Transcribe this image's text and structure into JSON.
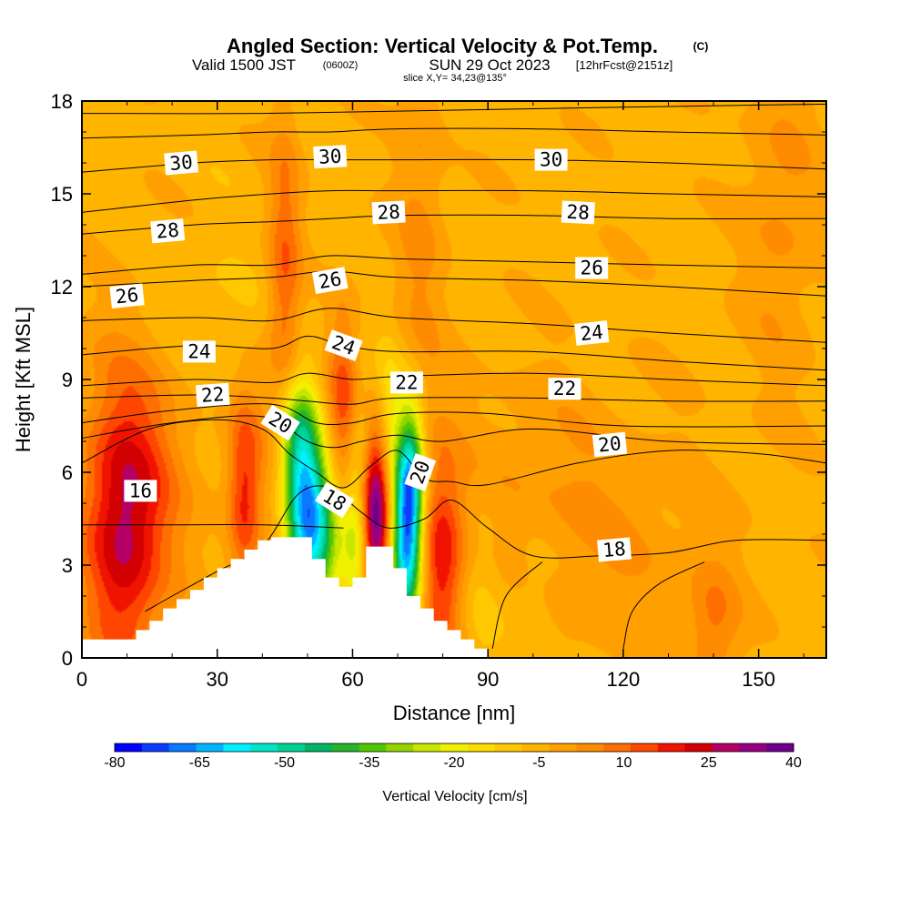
{
  "title": {
    "main": "Angled Section: Vertical Velocity & Pot.Temp.",
    "main_units": "(C)",
    "valid_prefix": "Valid 1500 JST",
    "valid_zulu": "(0600Z)",
    "valid_date": "SUN 29 Oct 2023",
    "valid_forecast": "[12hrFcst@2151z]",
    "slice": "slice X,Y= 34,23@135°"
  },
  "chart_data": {
    "type": "heatmap",
    "xlabel": "Distance [nm]",
    "ylabel": "Height [Kft MSL]",
    "xlim": [
      0,
      165
    ],
    "ylim": [
      0,
      18
    ],
    "x_ticks": [
      0,
      30,
      60,
      90,
      120,
      150
    ],
    "x_tick_labels": [
      "0",
      "30",
      "60",
      "90",
      "120",
      "150"
    ],
    "y_ticks": [
      0,
      3,
      6,
      9,
      12,
      15,
      18
    ],
    "y_tick_labels": [
      "0",
      "3",
      "6",
      "9",
      "12",
      "15",
      "18"
    ],
    "grid": false,
    "colorbar": {
      "label": "Vertical Velocity [cm/s]",
      "tick_labels": [
        "-80",
        "-65",
        "-50",
        "-35",
        "-20",
        "-5",
        "10",
        "25",
        "40"
      ],
      "levels": [
        -80,
        -75,
        -70,
        -65,
        -60,
        -55,
        -50,
        -45,
        -40,
        -35,
        -30,
        -25,
        -20,
        -15,
        -10,
        -5,
        0,
        5,
        10,
        15,
        20,
        25,
        30,
        35,
        40
      ],
      "colors": [
        "#0000ff",
        "#0a3cff",
        "#0a78ff",
        "#00b4ff",
        "#00f0ff",
        "#00e6c8",
        "#00d296",
        "#00b464",
        "#28b428",
        "#50c800",
        "#96d200",
        "#c8e600",
        "#f0f000",
        "#ffdc00",
        "#ffc800",
        "#ffb400",
        "#ffa000",
        "#ff8c00",
        "#ff6e00",
        "#ff4600",
        "#f01400",
        "#d20000",
        "#b40064",
        "#960082",
        "#6e008c"
      ]
    },
    "background_velocity_cms": -2,
    "vertical_velocity_cells": [
      {
        "x": 9,
        "z": 3.8,
        "sx": 6,
        "sz": 3.2,
        "w": 26
      },
      {
        "x": 13,
        "z": 6.0,
        "sx": 9,
        "sz": 3.0,
        "w": 12
      },
      {
        "x": 36,
        "z": 5.2,
        "sx": 2.6,
        "sz": 2.2,
        "w": 22
      },
      {
        "x": 45,
        "z": 12.5,
        "sx": 2.6,
        "sz": 3.5,
        "w": 16
      },
      {
        "x": 44,
        "z": 7.5,
        "sx": 6,
        "sz": 2.0,
        "w": 6
      },
      {
        "x": 58,
        "z": 8.0,
        "sx": 2.6,
        "sz": 2.2,
        "w": 20
      },
      {
        "x": 65,
        "z": 4.5,
        "sx": 2.2,
        "sz": 2.0,
        "w": 48
      },
      {
        "x": 80,
        "z": 3.2,
        "sx": 3.6,
        "sz": 2.4,
        "w": 26
      },
      {
        "x": 75,
        "z": 14,
        "sx": 4,
        "sz": 5,
        "w": 8
      },
      {
        "x": 155,
        "z": 14.5,
        "sx": 6,
        "sz": 4,
        "w": 8
      },
      {
        "x": 120,
        "z": 3.5,
        "sx": 15,
        "sz": 3,
        "w": 6
      },
      {
        "x": 140,
        "z": 1.0,
        "sx": 4,
        "sz": 1.5,
        "w": 12
      },
      {
        "x": 100,
        "z": 6.0,
        "sx": 12,
        "sz": 2.5,
        "w": 5
      },
      {
        "x": 30,
        "z": 10.5,
        "sx": 8,
        "sz": 2.0,
        "w": -4
      },
      {
        "x": 100,
        "z": 2.0,
        "sx": 4,
        "sz": 1.5,
        "w": -5
      },
      {
        "x": 49,
        "z": 5.0,
        "sx": 3.0,
        "sz": 2.4,
        "w": -52
      },
      {
        "x": 53,
        "z": 4.0,
        "sx": 3.0,
        "sz": 1.8,
        "w": -32
      },
      {
        "x": 61,
        "z": 4.0,
        "sx": 2.4,
        "sz": 2.0,
        "w": -22
      },
      {
        "x": 72,
        "z": 3.8,
        "sx": 2.4,
        "sz": 2.2,
        "w": -62
      },
      {
        "x": 73,
        "z": 6.0,
        "sx": 2.0,
        "sz": 1.6,
        "w": -30
      },
      {
        "x": 47,
        "z": 7.2,
        "sx": 3.0,
        "sz": 1.2,
        "w": -18
      },
      {
        "x": 62,
        "z": 7.5,
        "sx": 2.0,
        "sz": 1.5,
        "w": -8
      },
      {
        "x": 68,
        "z": 8.0,
        "sx": 2.0,
        "sz": 1.5,
        "w": -12
      },
      {
        "x": 88,
        "z": 2.0,
        "sx": 4,
        "sz": 2,
        "w": -5
      }
    ],
    "terrain_kft": [
      [
        0,
        0.6
      ],
      [
        9,
        0.6
      ],
      [
        9,
        0.6
      ],
      [
        9,
        0.6
      ],
      [
        9,
        0.6
      ],
      [
        12,
        0.6
      ],
      [
        12,
        0.9
      ],
      [
        15,
        0.9
      ],
      [
        15,
        1.2
      ],
      [
        18,
        1.2
      ],
      [
        18,
        1.6
      ],
      [
        21,
        1.6
      ],
      [
        21,
        1.9
      ],
      [
        24,
        1.9
      ],
      [
        24,
        2.2
      ],
      [
        27,
        2.2
      ],
      [
        27,
        2.6
      ],
      [
        30,
        2.6
      ],
      [
        30,
        2.9
      ],
      [
        33,
        2.9
      ],
      [
        33,
        3.2
      ],
      [
        36,
        3.2
      ],
      [
        36,
        3.5
      ],
      [
        39,
        3.5
      ],
      [
        39,
        3.8
      ],
      [
        42,
        3.8
      ],
      [
        42,
        3.9
      ],
      [
        51,
        3.9
      ],
      [
        51,
        3.2
      ],
      [
        54,
        3.2
      ],
      [
        54,
        2.6
      ],
      [
        57,
        2.6
      ],
      [
        57,
        2.3
      ],
      [
        60,
        2.3
      ],
      [
        60,
        2.6
      ],
      [
        63,
        2.6
      ],
      [
        63,
        3.6
      ],
      [
        69,
        3.6
      ],
      [
        69,
        2.9
      ],
      [
        72,
        2.9
      ],
      [
        72,
        2.0
      ],
      [
        75,
        2.0
      ],
      [
        75,
        1.6
      ],
      [
        78,
        1.6
      ],
      [
        78,
        1.2
      ],
      [
        81,
        1.2
      ],
      [
        81,
        0.9
      ],
      [
        84,
        0.9
      ],
      [
        84,
        0.6
      ],
      [
        87,
        0.6
      ],
      [
        87,
        0.3
      ],
      [
        90,
        0.3
      ]
    ],
    "potential_temperature_contours": [
      {
        "level": "16",
        "pts": [
          [
            0,
            4.3
          ],
          [
            20,
            4.3
          ],
          [
            40,
            4.3
          ],
          [
            58,
            4.2
          ]
        ]
      },
      {
        "level": "18",
        "pts": [
          [
            14,
            1.5
          ],
          [
            20,
            2.0
          ],
          [
            30,
            2.8
          ],
          [
            40,
            3.6
          ],
          [
            48,
            5.3
          ],
          [
            55,
            5.5
          ],
          [
            62,
            4.7
          ],
          [
            68,
            4.2
          ],
          [
            76,
            4.5
          ],
          [
            82,
            5.1
          ],
          [
            90,
            4.2
          ],
          [
            100,
            3.3
          ],
          [
            115,
            3.3
          ],
          [
            130,
            3.4
          ],
          [
            145,
            3.8
          ],
          [
            165,
            3.8
          ]
        ]
      },
      {
        "level": "18",
        "pts": [
          [
            91,
            0.3
          ],
          [
            94,
            2.0
          ],
          [
            102,
            3.1
          ]
        ]
      },
      {
        "level": "18",
        "pts": [
          [
            120,
            0.3
          ],
          [
            122,
            1.5
          ],
          [
            128,
            2.4
          ],
          [
            138,
            3.1
          ]
        ]
      },
      {
        "level": "20",
        "pts": [
          [
            0,
            6.3
          ],
          [
            15,
            7.4
          ],
          [
            30,
            7.7
          ],
          [
            40,
            7.4
          ],
          [
            46,
            6.6
          ],
          [
            52,
            6.0
          ],
          [
            58,
            5.5
          ],
          [
            64,
            6.2
          ],
          [
            70,
            6.7
          ],
          [
            76,
            5.8
          ],
          [
            82,
            5.7
          ],
          [
            90,
            5.6
          ],
          [
            110,
            6.3
          ],
          [
            130,
            6.7
          ],
          [
            150,
            6.6
          ],
          [
            165,
            6.3
          ]
        ]
      },
      {
        "level": "20",
        "pts": [
          [
            0,
            7.1
          ],
          [
            20,
            7.6
          ],
          [
            40,
            7.8
          ],
          [
            50,
            7.0
          ],
          [
            56,
            6.8
          ],
          [
            62,
            7.0
          ],
          [
            70,
            7.2
          ],
          [
            80,
            7.0
          ],
          [
            100,
            7.4
          ],
          [
            130,
            7.0
          ],
          [
            165,
            6.9
          ]
        ]
      },
      {
        "level": "20",
        "pts": [
          [
            0,
            7.6
          ],
          [
            20,
            8.0
          ],
          [
            42,
            8.2
          ],
          [
            52,
            7.6
          ],
          [
            60,
            7.6
          ],
          [
            70,
            7.9
          ],
          [
            90,
            7.9
          ],
          [
            120,
            7.5
          ],
          [
            165,
            7.5
          ]
        ]
      },
      {
        "level": "22",
        "pts": [
          [
            0,
            8.4
          ],
          [
            25,
            8.5
          ],
          [
            42,
            8.4
          ],
          [
            50,
            8.3
          ],
          [
            60,
            8.2
          ],
          [
            70,
            8.4
          ],
          [
            100,
            8.4
          ],
          [
            130,
            8.3
          ],
          [
            165,
            8.3
          ]
        ]
      },
      {
        "level": "22",
        "pts": [
          [
            0,
            8.8
          ],
          [
            25,
            9.0
          ],
          [
            42,
            8.9
          ],
          [
            50,
            9.2
          ],
          [
            60,
            9.0
          ],
          [
            70,
            9.1
          ],
          [
            100,
            9.2
          ],
          [
            130,
            9.0
          ],
          [
            165,
            8.8
          ]
        ]
      },
      {
        "level": "24",
        "pts": [
          [
            0,
            9.8
          ],
          [
            25,
            10.1
          ],
          [
            42,
            10.0
          ],
          [
            50,
            10.4
          ],
          [
            58,
            10.1
          ],
          [
            70,
            9.9
          ],
          [
            100,
            9.9
          ],
          [
            130,
            9.6
          ],
          [
            165,
            9.3
          ]
        ]
      },
      {
        "level": "24",
        "pts": [
          [
            0,
            10.9
          ],
          [
            25,
            11.0
          ],
          [
            42,
            10.9
          ],
          [
            55,
            11.3
          ],
          [
            70,
            11.0
          ],
          [
            100,
            10.8
          ],
          [
            130,
            10.5
          ],
          [
            165,
            10.2
          ]
        ]
      },
      {
        "level": "26",
        "pts": [
          [
            0,
            12.0
          ],
          [
            25,
            12.2
          ],
          [
            42,
            12.3
          ],
          [
            55,
            12.5
          ],
          [
            70,
            12.3
          ],
          [
            100,
            12.2
          ],
          [
            130,
            12.0
          ],
          [
            165,
            11.7
          ]
        ]
      },
      {
        "level": "26",
        "pts": [
          [
            0,
            12.4
          ],
          [
            25,
            12.7
          ],
          [
            42,
            12.7
          ],
          [
            55,
            13.0
          ],
          [
            70,
            12.9
          ],
          [
            100,
            12.8
          ],
          [
            130,
            12.7
          ],
          [
            165,
            12.6
          ]
        ]
      },
      {
        "level": "28",
        "pts": [
          [
            0,
            13.7
          ],
          [
            25,
            14.0
          ],
          [
            42,
            14.1
          ],
          [
            55,
            14.2
          ],
          [
            70,
            14.3
          ],
          [
            100,
            14.3
          ],
          [
            130,
            14.2
          ],
          [
            165,
            14.2
          ]
        ]
      },
      {
        "level": "28",
        "pts": [
          [
            0,
            14.4
          ],
          [
            25,
            14.8
          ],
          [
            42,
            15.0
          ],
          [
            55,
            15.1
          ],
          [
            70,
            15.1
          ],
          [
            100,
            15.1
          ],
          [
            130,
            15.0
          ],
          [
            165,
            14.9
          ]
        ]
      },
      {
        "level": "30",
        "pts": [
          [
            0,
            15.7
          ],
          [
            25,
            16.0
          ],
          [
            42,
            16.1
          ],
          [
            55,
            16.1
          ],
          [
            70,
            16.1
          ],
          [
            100,
            16.1
          ],
          [
            130,
            16.0
          ],
          [
            165,
            15.8
          ]
        ]
      },
      {
        "level": "30",
        "pts": [
          [
            0,
            16.8
          ],
          [
            25,
            16.9
          ],
          [
            42,
            17.0
          ],
          [
            55,
            17.0
          ],
          [
            70,
            17.1
          ],
          [
            100,
            17.1
          ],
          [
            130,
            17.0
          ],
          [
            165,
            16.9
          ]
        ]
      },
      {
        "level": "30",
        "pts": [
          [
            0,
            17.6
          ],
          [
            40,
            17.6
          ],
          [
            80,
            17.7
          ],
          [
            120,
            17.8
          ],
          [
            165,
            17.9
          ]
        ]
      }
    ],
    "contour_labels": [
      {
        "text": "30",
        "x": 22,
        "z": 16.0,
        "rot": -5
      },
      {
        "text": "30",
        "x": 55,
        "z": 16.2,
        "rot": -3
      },
      {
        "text": "30",
        "x": 104,
        "z": 16.1,
        "rot": 0
      },
      {
        "text": "28",
        "x": 19,
        "z": 13.8,
        "rot": -5
      },
      {
        "text": "28",
        "x": 68,
        "z": 14.4,
        "rot": -3
      },
      {
        "text": "28",
        "x": 110,
        "z": 14.4,
        "rot": 3
      },
      {
        "text": "26",
        "x": 10,
        "z": 11.7,
        "rot": -6
      },
      {
        "text": "26",
        "x": 55,
        "z": 12.2,
        "rot": -10
      },
      {
        "text": "26",
        "x": 113,
        "z": 12.6,
        "rot": 0
      },
      {
        "text": "24",
        "x": 26,
        "z": 9.9,
        "rot": 0
      },
      {
        "text": "24",
        "x": 58,
        "z": 10.1,
        "rot": 20
      },
      {
        "text": "24",
        "x": 113,
        "z": 10.5,
        "rot": -6
      },
      {
        "text": "22",
        "x": 29,
        "z": 8.5,
        "rot": -4
      },
      {
        "text": "22",
        "x": 72,
        "z": 8.9,
        "rot": 0
      },
      {
        "text": "22",
        "x": 107,
        "z": 8.7,
        "rot": 0
      },
      {
        "text": "20",
        "x": 44,
        "z": 7.6,
        "rot": 32
      },
      {
        "text": "20",
        "x": 75,
        "z": 6.0,
        "rot": -70
      },
      {
        "text": "20",
        "x": 117,
        "z": 6.9,
        "rot": -6
      },
      {
        "text": "18",
        "x": 56,
        "z": 5.1,
        "rot": 32
      },
      {
        "text": "18",
        "x": 118,
        "z": 3.5,
        "rot": -5
      },
      {
        "text": "16",
        "x": 13,
        "z": 5.4,
        "rot": 0
      }
    ]
  }
}
